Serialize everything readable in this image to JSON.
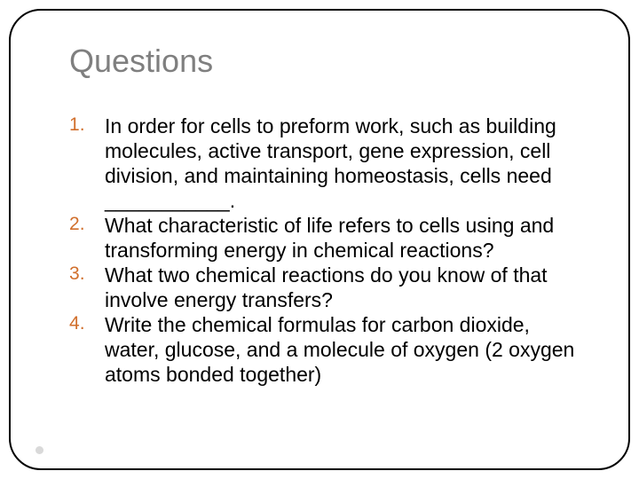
{
  "slide": {
    "title": "Questions",
    "title_color": "#7f7f7f",
    "title_fontsize": 36,
    "list_number_color": "#d16f2c",
    "body_fontsize": 23,
    "body_color": "#000000",
    "border_color": "#000000",
    "border_radius": 36,
    "background_color": "#ffffff",
    "footer_dot_color": "#d9d9d9",
    "items": [
      "In order for cells to preform work, such as building molecules, active transport, gene expression, cell division, and maintaining homeostasis, cells need ___________.",
      "What characteristic of life refers to cells using and transforming energy in chemical reactions?",
      "What two chemical reactions do you know of that involve energy transfers?",
      "Write the chemical formulas for carbon dioxide, water, glucose, and a molecule of oxygen (2 oxygen atoms bonded together)"
    ]
  }
}
